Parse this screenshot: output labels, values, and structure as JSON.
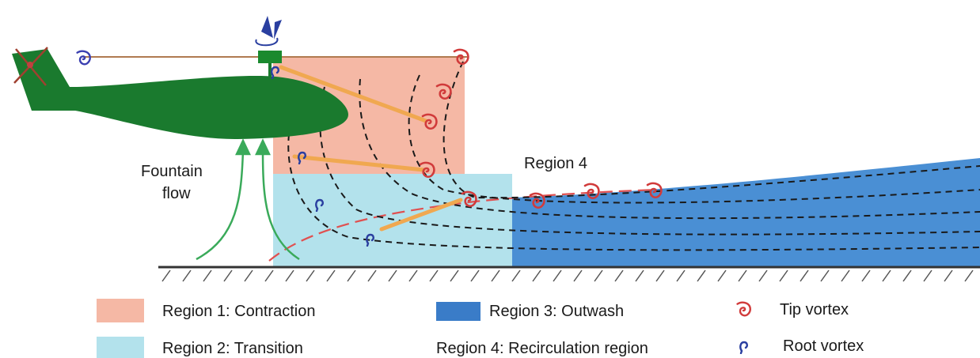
{
  "labels": {
    "fountain_line1": "Fountain",
    "fountain_line2": "flow",
    "region4": "Region 4"
  },
  "legend": {
    "region1": "Region 1: Contraction",
    "region2": "Region 2: Transition",
    "region3": "Region 3: Outwash",
    "region4": "Region 4: Recirculation region",
    "tip_vortex": "Tip vortex",
    "root_vortex": "Root vortex"
  },
  "colors": {
    "region1": "#f5b8a5",
    "region2": "#b3e2ec",
    "region3": "#4a8fd4",
    "helicopter": "#1a7a2e",
    "tip_vortex": "#d13b3b",
    "root_vortex": "#2a3fa0",
    "streamline": "#1a1a1a",
    "tip_path": "#e05050",
    "fountain_arrow": "#3aaa5a",
    "wake_sheet": "#f0a850"
  }
}
